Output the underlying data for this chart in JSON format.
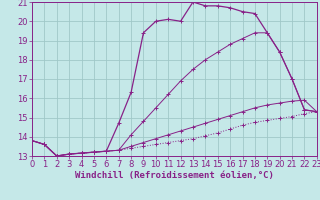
{
  "background_color": "#c5e8e8",
  "grid_color": "#a0c8c8",
  "line_color": "#882288",
  "xlim": [
    0,
    23
  ],
  "ylim": [
    13,
    21
  ],
  "xlabel": "Windchill (Refroidissement éolien,°C)",
  "xlabel_fontsize": 6.5,
  "xticks": [
    0,
    1,
    2,
    3,
    4,
    5,
    6,
    7,
    8,
    9,
    10,
    11,
    12,
    13,
    14,
    15,
    16,
    17,
    18,
    19,
    20,
    21,
    22,
    23
  ],
  "yticks": [
    13,
    14,
    15,
    16,
    17,
    18,
    19,
    20,
    21
  ],
  "tick_fontsize": 6,
  "curve1_x": [
    0,
    1,
    2,
    3,
    4,
    5,
    6,
    7,
    8,
    9,
    10,
    11,
    12,
    13,
    14,
    15,
    16,
    17,
    18,
    19,
    20,
    21,
    22,
    23
  ],
  "curve1_y": [
    13.8,
    13.6,
    13.0,
    13.1,
    13.15,
    13.2,
    13.25,
    13.3,
    13.4,
    13.5,
    13.6,
    13.7,
    13.8,
    13.9,
    14.05,
    14.2,
    14.4,
    14.6,
    14.75,
    14.85,
    14.95,
    15.05,
    15.2,
    15.3
  ],
  "curve2_x": [
    0,
    1,
    2,
    3,
    4,
    5,
    6,
    7,
    8,
    9,
    10,
    11,
    12,
    13,
    14,
    15,
    16,
    17,
    18,
    19,
    20,
    21,
    22,
    23
  ],
  "curve2_y": [
    13.8,
    13.6,
    13.0,
    13.1,
    13.15,
    13.2,
    13.25,
    14.7,
    16.3,
    19.4,
    20.0,
    20.1,
    20.0,
    21.0,
    20.8,
    20.8,
    20.7,
    20.5,
    20.4,
    19.4,
    18.4,
    17.0,
    15.4,
    15.3
  ],
  "curve3_x": [
    0,
    1,
    2,
    3,
    4,
    5,
    6,
    7,
    8,
    9,
    10,
    11,
    12,
    13,
    14,
    15,
    16,
    17,
    18,
    19,
    20,
    21,
    22,
    23
  ],
  "curve3_y": [
    13.8,
    13.6,
    13.0,
    13.1,
    13.15,
    13.2,
    13.25,
    13.3,
    14.1,
    14.8,
    15.5,
    16.2,
    16.9,
    17.5,
    18.0,
    18.4,
    18.8,
    19.1,
    19.4,
    19.4,
    18.4,
    17.0,
    15.4,
    15.3
  ],
  "curve4_x": [
    0,
    1,
    2,
    3,
    4,
    5,
    6,
    7,
    8,
    9,
    10,
    11,
    12,
    13,
    14,
    15,
    16,
    17,
    18,
    19,
    20,
    21,
    22,
    23
  ],
  "curve4_y": [
    13.8,
    13.6,
    13.0,
    13.1,
    13.15,
    13.2,
    13.25,
    13.3,
    13.5,
    13.7,
    13.9,
    14.1,
    14.3,
    14.5,
    14.7,
    14.9,
    15.1,
    15.3,
    15.5,
    15.65,
    15.75,
    15.85,
    15.9,
    15.3
  ]
}
